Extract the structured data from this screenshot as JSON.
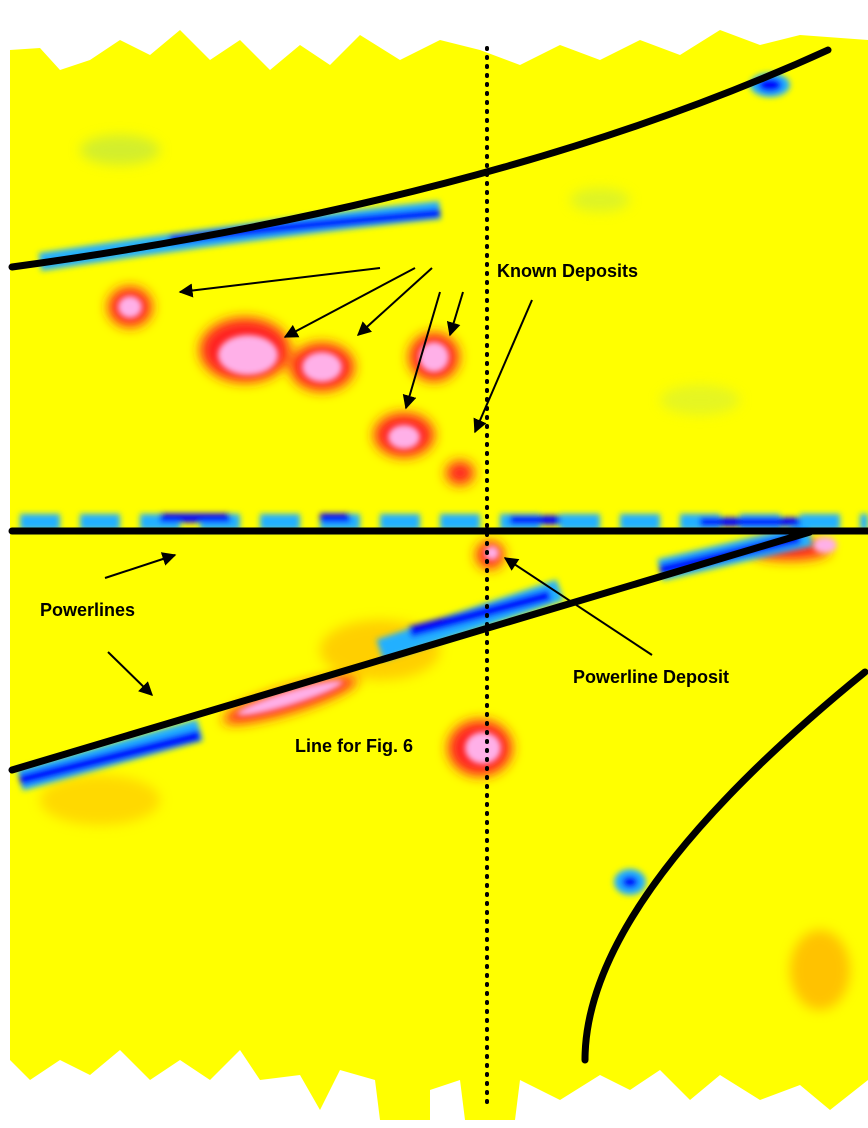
{
  "labels": {
    "known_deposits": "Known Deposits",
    "powerlines": "Powerlines",
    "powerline_deposit": "Powerline Deposit",
    "line_for_fig": "Line for Fig. 6"
  }
}
